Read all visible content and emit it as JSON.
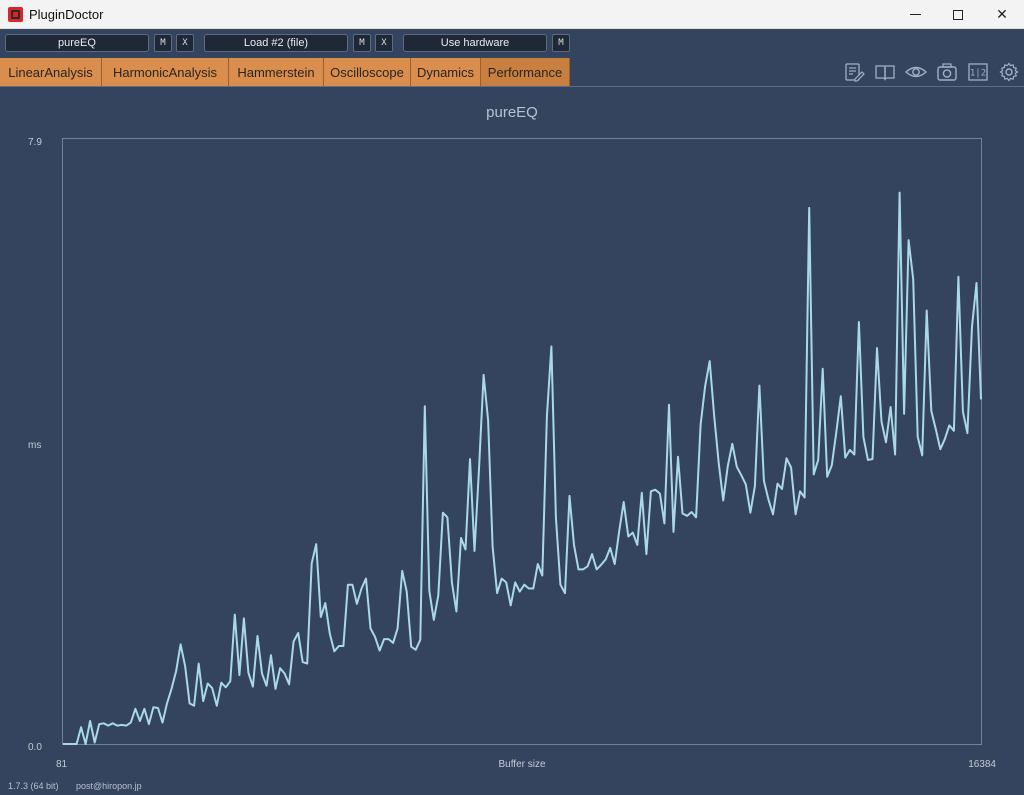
{
  "window": {
    "title": "PluginDoctor",
    "controls": {
      "minimize_icon": "minimize-icon",
      "maximize_icon": "maximize-icon",
      "close_glyph": "✕"
    }
  },
  "toolbar": {
    "slot1": {
      "value": "pureEQ",
      "m_label": "M",
      "x_label": "X"
    },
    "slot2": {
      "value": "Load #2 (file)",
      "m_label": "M",
      "x_label": "X"
    },
    "slot3": {
      "value": "Use hardware",
      "m_label": "M"
    }
  },
  "tabs": [
    {
      "label": "LinearAnalysis"
    },
    {
      "label": "HarmonicAnalysis"
    },
    {
      "label": "Hammerstein"
    },
    {
      "label": "Oscilloscope"
    },
    {
      "label": "Dynamics"
    },
    {
      "label": "Performance",
      "active": true
    }
  ],
  "tool_icons": [
    "notes-edit-icon",
    "book-icon",
    "eye-icon",
    "camera-icon",
    "split-view-icon",
    "settings-gear-icon"
  ],
  "split_view_label": "1|2",
  "colors": {
    "background": "#34445e",
    "tab": "#d98e4e",
    "line": "#a9d8e6"
  },
  "chart_data": {
    "type": "line",
    "title": "pureEQ",
    "xlabel": "Buffer size",
    "ylabel": "ms",
    "xlim": [
      81,
      16384
    ],
    "ylim": [
      0.0,
      7.9
    ],
    "x_tick_labels": [
      "81",
      "16384"
    ],
    "y_tick_labels": [
      "0.0",
      "7.9"
    ],
    "grid": false,
    "series": [
      {
        "values": [
          0.0,
          0.0,
          0.0,
          0.0,
          0.22,
          0.0,
          0.3,
          0.02,
          0.26,
          0.27,
          0.24,
          0.27,
          0.24,
          0.25,
          0.24,
          0.28,
          0.46,
          0.3,
          0.46,
          0.26,
          0.48,
          0.47,
          0.28,
          0.53,
          0.72,
          0.95,
          1.3,
          1.02,
          0.53,
          0.5,
          1.05,
          0.56,
          0.79,
          0.73,
          0.5,
          0.8,
          0.74,
          0.82,
          1.69,
          0.9,
          1.64,
          0.93,
          0.75,
          1.41,
          0.92,
          0.76,
          1.16,
          0.72,
          0.99,
          0.92,
          0.78,
          1.34,
          1.45,
          1.07,
          1.05,
          2.36,
          2.61,
          1.66,
          1.84,
          1.44,
          1.21,
          1.28,
          1.28,
          2.08,
          2.08,
          1.83,
          2.03,
          2.16,
          1.51,
          1.4,
          1.22,
          1.37,
          1.37,
          1.32,
          1.51,
          2.26,
          1.99,
          1.27,
          1.23,
          1.36,
          4.41,
          2.0,
          1.62,
          1.94,
          3.02,
          2.96,
          2.11,
          1.73,
          2.69,
          2.54,
          3.72,
          2.52,
          3.59,
          4.82,
          4.23,
          2.58,
          1.97,
          2.16,
          2.11,
          1.81,
          2.11,
          1.99,
          2.08,
          2.03,
          2.03,
          2.35,
          2.2,
          4.28,
          5.19,
          2.96,
          2.08,
          1.97,
          3.24,
          2.6,
          2.28,
          2.28,
          2.32,
          2.48,
          2.28,
          2.34,
          2.41,
          2.56,
          2.35,
          2.78,
          3.16,
          2.71,
          2.76,
          2.6,
          3.28,
          2.48,
          3.3,
          3.32,
          3.27,
          2.88,
          4.43,
          2.77,
          3.75,
          3.01,
          2.98,
          3.03,
          2.96,
          4.17,
          4.67,
          5.0,
          4.28,
          3.67,
          3.18,
          3.63,
          3.92,
          3.62,
          3.51,
          3.39,
          3.02,
          3.37,
          4.68,
          3.44,
          3.19,
          3.0,
          3.4,
          3.33,
          3.73,
          3.61,
          3.0,
          3.3,
          3.22,
          7.0,
          3.52,
          3.71,
          4.9,
          3.49,
          3.64,
          4.07,
          4.54,
          3.74,
          3.84,
          3.78,
          5.51,
          4.01,
          3.71,
          3.72,
          5.17,
          4.21,
          3.94,
          4.4,
          3.78,
          7.2,
          4.31,
          6.58,
          6.07,
          4.01,
          3.77,
          5.66,
          4.35,
          4.11,
          3.85,
          3.98,
          4.16,
          4.09,
          6.1,
          4.34,
          4.06,
          5.45,
          6.02,
          4.5
        ]
      }
    ]
  },
  "footer": {
    "version": "1.7.3 (64 bit)",
    "email": "post@hiropon.jp"
  }
}
